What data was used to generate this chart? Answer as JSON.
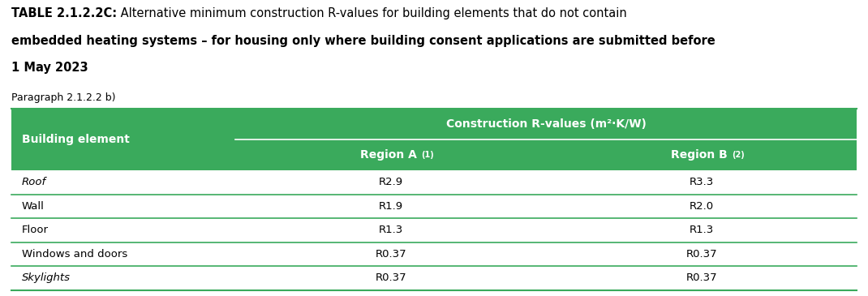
{
  "title_bold": "TABLE 2.1.2.2C:",
  "title_rest": " Alternative minimum construction R-values for building elements that do not contain\nembedded heating systems – for housing only where building consent applications are submitted before\n1 May 2023",
  "subtitle": "Paragraph 2.1.2.2 b)",
  "header_green": "#3aaa5c",
  "header_text_color": "#ffffff",
  "row_line_color": "#3aaa5c",
  "col1_header": "Building element",
  "col23_header": "Construction R-values (m²·K/W)",
  "col2_sub": "Region A ",
  "col2_sup": "(1)",
  "col3_sub": "Region B ",
  "col3_sup": "(2)",
  "rows": [
    [
      "Roof",
      "R2.9",
      "R3.3"
    ],
    [
      "Wall",
      "R1.9",
      "R2.0"
    ],
    [
      "Floor",
      "R1.3",
      "R1.3"
    ],
    [
      "Windows and doors",
      "R0.37",
      "R0.37"
    ],
    [
      "Skylights",
      "R0.37",
      "R0.37"
    ]
  ],
  "italic_rows": [
    0,
    4
  ],
  "background_color": "#ffffff",
  "body_text_color": "#000000",
  "figure_width": 10.7,
  "figure_height": 3.65,
  "dpi": 100
}
